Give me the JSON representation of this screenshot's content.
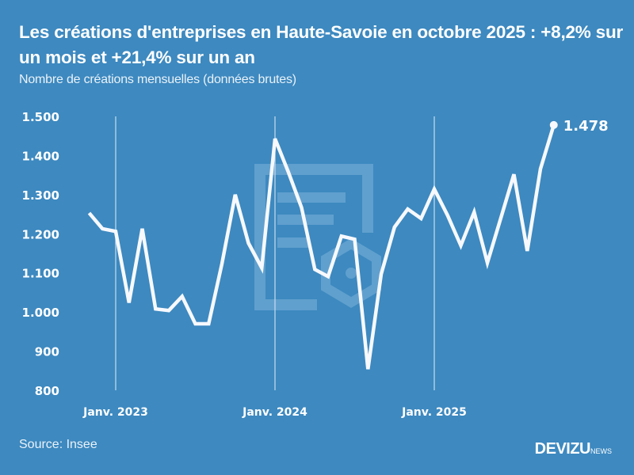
{
  "header": {
    "title": "Les créations d'entreprises en Haute-Savoie en octobre 2025 : +8,2% sur un mois et +21,4% sur un an",
    "subtitle": "Nombre de créations mensuelles (données brutes)"
  },
  "footer": {
    "source": "Source: Insee",
    "brand": "DEVIZU",
    "brand_suffix": "NEWS"
  },
  "colors": {
    "background": "#3d89c0",
    "line": "#f7f9ff",
    "gridline": "#c9ddef",
    "watermark": "#6aa5d0"
  },
  "chart_data": {
    "type": "line",
    "title": "Les créations d'entreprises en Haute-Savoie en octobre 2025 : +8,2% sur un mois et +21,4% sur un an",
    "subtitle": "Nombre de créations mensuelles (données brutes)",
    "xlabel": "",
    "ylabel": "",
    "ylim": [
      800,
      1500
    ],
    "yticks": [
      800,
      900,
      1000,
      1100,
      1200,
      1300,
      1400,
      1500
    ],
    "ytick_labels": [
      "800",
      "900",
      "1.000",
      "1.100",
      "1.200",
      "1.300",
      "1.400",
      "1.500"
    ],
    "xtick_labels": [
      "Janv. 2023",
      "Janv. 2024",
      "Janv. 2025"
    ],
    "grid": "vertical lines at January of each year",
    "legend": null,
    "annotation": {
      "label": "1.478",
      "x": "Oct. 2025",
      "y": 1478
    },
    "x": [
      "Nov. 2022",
      "Déc. 2022",
      "Janv. 2023",
      "Févr. 2023",
      "Mars 2023",
      "Avr. 2023",
      "Mai 2023",
      "Juin 2023",
      "Juil. 2023",
      "Août 2023",
      "Sept. 2023",
      "Oct. 2023",
      "Nov. 2023",
      "Déc. 2023",
      "Janv. 2024",
      "Févr. 2024",
      "Mars 2024",
      "Avr. 2024",
      "Mai 2024",
      "Juin 2024",
      "Juil. 2024",
      "Août 2024",
      "Sept. 2024",
      "Oct. 2024",
      "Nov. 2024",
      "Déc. 2024",
      "Janv. 2025",
      "Févr. 2025",
      "Mars 2025",
      "Avr. 2025",
      "Mai 2025",
      "Juin 2025",
      "Juil. 2025",
      "Août 2025",
      "Sept. 2025",
      "Oct. 2025"
    ],
    "series": [
      {
        "name": "Créations mensuelles",
        "values": [
          1253,
          1213,
          1206,
          1024,
          1213,
          1008,
          1004,
          1040,
          970,
          970,
          1123,
          1300,
          1176,
          1113,
          1443,
          1358,
          1267,
          1109,
          1091,
          1194,
          1186,
          854,
          1097,
          1217,
          1263,
          1239,
          1314,
          1247,
          1170,
          1255,
          1126,
          1239,
          1352,
          1156,
          1366,
          1478
        ]
      }
    ]
  }
}
